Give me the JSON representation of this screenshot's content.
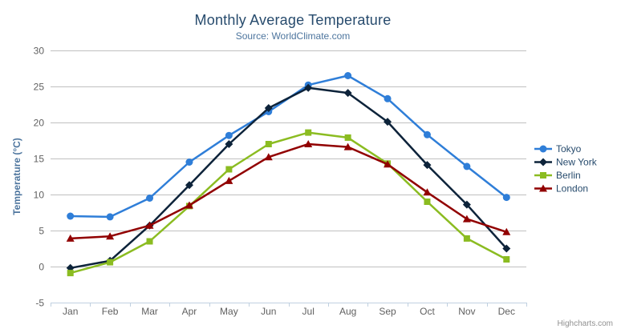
{
  "chart_data": {
    "type": "line",
    "title": "Monthly Average Temperature",
    "subtitle": "Source: WorldClimate.com",
    "categories": [
      "Jan",
      "Feb",
      "Mar",
      "Apr",
      "May",
      "Jun",
      "Jul",
      "Aug",
      "Sep",
      "Oct",
      "Nov",
      "Dec"
    ],
    "xlabel": "",
    "ylabel": "Temperature (°C)",
    "ylim": [
      -5,
      30
    ],
    "ytick_step": 5,
    "grid": true,
    "legend_position": "right",
    "series": [
      {
        "name": "Tokyo",
        "color": "#2f7ed8",
        "marker": "circle",
        "values": [
          7.0,
          6.9,
          9.5,
          14.5,
          18.2,
          21.5,
          25.2,
          26.5,
          23.3,
          18.3,
          13.9,
          9.6
        ]
      },
      {
        "name": "New York",
        "color": "#0d233a",
        "marker": "diamond",
        "values": [
          -0.2,
          0.8,
          5.7,
          11.3,
          17.0,
          22.0,
          24.8,
          24.1,
          20.1,
          14.1,
          8.6,
          2.5
        ]
      },
      {
        "name": "Berlin",
        "color": "#8bbc21",
        "marker": "square",
        "values": [
          -0.9,
          0.6,
          3.5,
          8.4,
          13.5,
          17.0,
          18.6,
          17.9,
          14.3,
          9.0,
          3.9,
          1.0
        ]
      },
      {
        "name": "London",
        "color": "#910000",
        "marker": "triangle",
        "values": [
          3.9,
          4.2,
          5.7,
          8.5,
          11.9,
          15.2,
          17.0,
          16.6,
          14.2,
          10.3,
          6.6,
          4.8
        ]
      }
    ],
    "credits": "Highcharts.com",
    "colors": {
      "title": "#274b6d",
      "subtitle": "#4d759e",
      "axis_title": "#4d759e",
      "tick_label": "#606060",
      "gridline": "#c0c0c0",
      "axis_line": "#c0d0e0",
      "legend_text": "#274b6d",
      "credits": "#909090",
      "export_icon": "#666666"
    },
    "icons": {
      "export_menu": "hamburger-icon"
    }
  }
}
